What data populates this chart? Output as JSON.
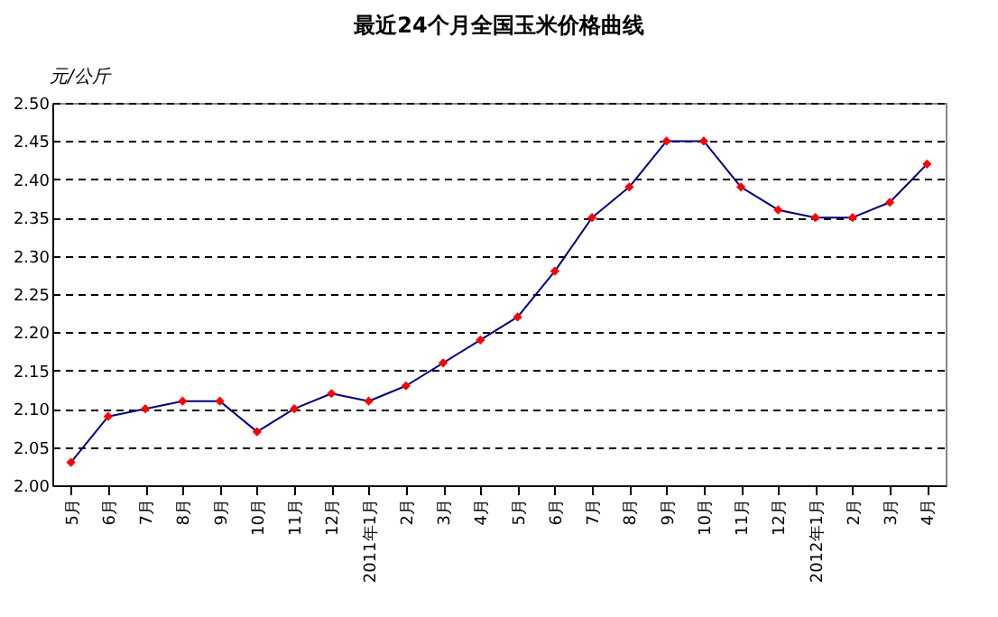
{
  "chart_data": {
    "type": "line",
    "title": "最近24个月全国玉米价格曲线",
    "ylabel": "元/公斤",
    "categories": [
      "5月",
      "6月",
      "7月",
      "8月",
      "9月",
      "10月",
      "11月",
      "12月",
      "2011年1月",
      "2月",
      "3月",
      "4月",
      "5月",
      "6月",
      "7月",
      "8月",
      "9月",
      "10月",
      "11月",
      "12月",
      "2012年1月",
      "2月",
      "3月",
      "4月"
    ],
    "series": [
      {
        "color": "#000080",
        "values": [
          2.03,
          2.09,
          2.1,
          2.11,
          2.11,
          2.07,
          2.1,
          2.12,
          2.11,
          2.13,
          2.16,
          2.19,
          2.22,
          2.28,
          2.35,
          2.39,
          2.45,
          2.45,
          2.39,
          2.36,
          2.35,
          2.35,
          2.37,
          2.42
        ],
        "colors": [
          "#ff0000",
          "#ff0000",
          "#ff0000",
          "#ff0000",
          "#ff0000",
          "#ff0000",
          "#ff0000",
          "#ff0000",
          "#ff0000",
          "#ff0000",
          "#ff0000",
          "#ff0000",
          "#ff0000",
          "#ff0000",
          "#ff0000",
          "#ff0000",
          "#ff0000",
          "#ff0000",
          "#ff0000",
          "#ff0000",
          "#ff0000",
          "#ff0000",
          "#ff0000",
          "#ff0000"
        ]
      }
    ],
    "marker": "diamond",
    "line_style": "solid",
    "ylim": [
      2.0,
      2.5
    ],
    "yticks": [
      {
        "value": 2.0,
        "label": "2.00"
      },
      {
        "value": 2.05,
        "label": "2.05"
      },
      {
        "value": 2.1,
        "label": "2.10"
      },
      {
        "value": 2.15,
        "label": "2.15"
      },
      {
        "value": 2.2,
        "label": "2.20"
      },
      {
        "value": 2.25,
        "label": "2.25"
      },
      {
        "value": 2.3,
        "label": "2.30"
      },
      {
        "value": 2.35,
        "label": "2.35"
      },
      {
        "value": 2.4,
        "label": "2.40"
      },
      {
        "value": 2.45,
        "label": "2.45"
      },
      {
        "value": 2.5,
        "label": "2.50"
      }
    ],
    "grid": "y",
    "legend": false
  }
}
